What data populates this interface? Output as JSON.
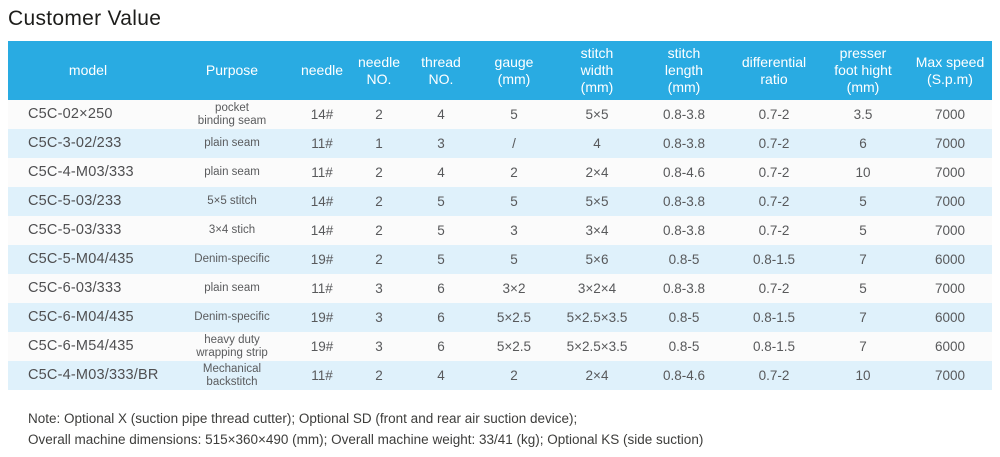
{
  "title": "Customer Value",
  "colors": {
    "header_bg": "#29abe2",
    "row_stripe_bg": "#dff1fb",
    "row_bg": "#fbfbfb",
    "header_text": "#ffffff",
    "body_text": "#58595b"
  },
  "table": {
    "columns": [
      {
        "key": "model",
        "label": "model"
      },
      {
        "key": "purpose",
        "label": "Purpose"
      },
      {
        "key": "needle",
        "label": "needle"
      },
      {
        "key": "needle-no",
        "label": "needle\nNO."
      },
      {
        "key": "thread-no",
        "label": "thread\nNO."
      },
      {
        "key": "gauge",
        "label": "gauge\n(mm)"
      },
      {
        "key": "stitch-width",
        "label": "stitch\nwidth\n(mm)"
      },
      {
        "key": "stitch-length",
        "label": "stitch\nlength\n(mm)"
      },
      {
        "key": "differential-ratio",
        "label": "differential\nratio"
      },
      {
        "key": "presser-foot-hight",
        "label": "presser\nfoot hight\n(mm)"
      },
      {
        "key": "max-speed",
        "label": "Max speed\n(S.p.m)"
      }
    ],
    "rows": [
      [
        "C5C-02×250",
        "pocket\nbinding seam",
        "14#",
        "2",
        "4",
        "5",
        "5×5",
        "0.8-3.8",
        "0.7-2",
        "3.5",
        "7000"
      ],
      [
        "C5C-3-02/233",
        "plain seam",
        "11#",
        "1",
        "3",
        "/",
        "4",
        "0.8-3.8",
        "0.7-2",
        "6",
        "7000"
      ],
      [
        "C5C-4-M03/333",
        "plain seam",
        "11#",
        "2",
        "4",
        "2",
        "2×4",
        "0.8-4.6",
        "0.7-2",
        "10",
        "7000"
      ],
      [
        "C5C-5-03/233",
        "5×5 stitch",
        "14#",
        "2",
        "5",
        "5",
        "5×5",
        "0.8-3.8",
        "0.7-2",
        "5",
        "7000"
      ],
      [
        "C5C-5-03/333",
        "3×4 stich",
        "14#",
        "2",
        "5",
        "3",
        "3×4",
        "0.8-3.8",
        "0.7-2",
        "5",
        "7000"
      ],
      [
        "C5C-5-M04/435",
        "Denim-specific",
        "19#",
        "2",
        "5",
        "5",
        "5×6",
        "0.8-5",
        "0.8-1.5",
        "7",
        "6000"
      ],
      [
        "C5C-6-03/333",
        "plain seam",
        "11#",
        "3",
        "6",
        "3×2",
        "3×2×4",
        "0.8-3.8",
        "0.7-2",
        "5",
        "7000"
      ],
      [
        "C5C-6-M04/435",
        "Denim-specific",
        "19#",
        "3",
        "6",
        "5×2.5",
        "5×2.5×3.5",
        "0.8-5",
        "0.8-1.5",
        "7",
        "6000"
      ],
      [
        "C5C-6-M54/435",
        "heavy duty\nwrapping strip",
        "19#",
        "3",
        "6",
        "5×2.5",
        "5×2.5×3.5",
        "0.8-5",
        "0.8-1.5",
        "7",
        "6000"
      ],
      [
        "C5C-4-M03/333/BR",
        "Mechanical\nbackstitch",
        "11#",
        "2",
        "4",
        "2",
        "2×4",
        "0.8-4.6",
        "0.7-2",
        "10",
        "7000"
      ]
    ]
  },
  "notes": [
    "Note: Optional X (suction pipe thread cutter); Optional SD (front and rear air suction device);",
    "Overall machine dimensions: 515×360×490 (mm); Overall machine weight: 33/41 (kg); Optional KS (side suction)"
  ]
}
